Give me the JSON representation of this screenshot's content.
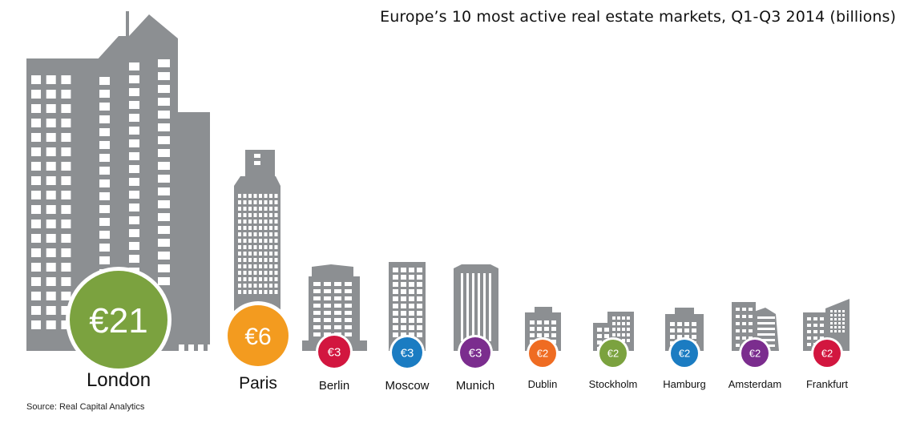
{
  "title": "Europe’s 10 most active real estate markets, Q1-Q3 2014 (billions)",
  "source": "Source: Real Capital Analytics",
  "chart_data": {
    "type": "bar",
    "title": "Europe’s 10 most active real estate markets, Q1-Q3 2014 (billions)",
    "unit": "€ billions",
    "categories": [
      "London",
      "Paris",
      "Berlin",
      "Moscow",
      "Munich",
      "Dublin",
      "Stockholm",
      "Hamburg",
      "Amsterdam",
      "Frankfurt"
    ],
    "values": [
      21,
      6,
      3,
      3,
      3,
      2,
      2,
      2,
      2,
      2
    ],
    "value_labels": [
      "€21",
      "€6",
      "€3",
      "€3",
      "€3",
      "€2",
      "€2",
      "€2",
      "€2",
      "€2"
    ],
    "colors": [
      "#7ba23f",
      "#f39b1f",
      "#d2163f",
      "#1b7cc2",
      "#7b2d8e",
      "#ef6c22",
      "#7ba23f",
      "#1b7cc2",
      "#7b2d8e",
      "#d2163f"
    ],
    "building_color": "#8c8f92"
  }
}
